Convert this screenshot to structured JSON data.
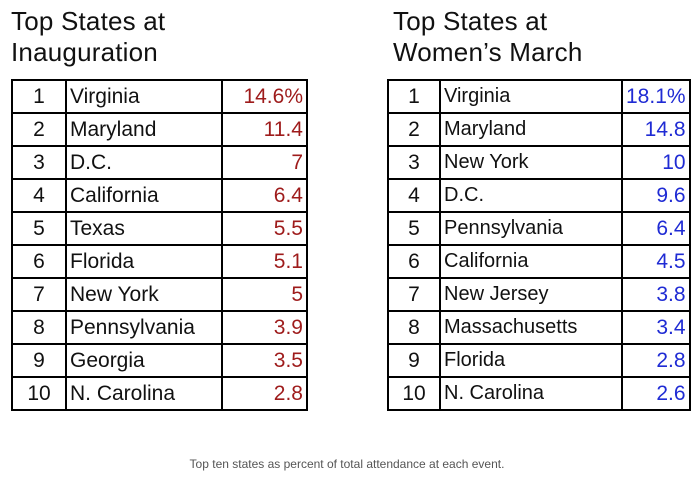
{
  "chart_data": [
    {
      "type": "table",
      "title": "Top States  at\nInauguration",
      "colors": {
        "value_text": "#9e1b1b"
      },
      "rows": [
        {
          "rank": "1",
          "state": "Virginia",
          "value": "14.6%"
        },
        {
          "rank": "2",
          "state": "Maryland",
          "value": "11.4"
        },
        {
          "rank": "3",
          "state": "D.C.",
          "value": "7"
        },
        {
          "rank": "4",
          "state": "California",
          "value": "6.4"
        },
        {
          "rank": "5",
          "state": "Texas",
          "value": "5.5"
        },
        {
          "rank": "6",
          "state": "Florida",
          "value": "5.1"
        },
        {
          "rank": "7",
          "state": "New York",
          "value": "5"
        },
        {
          "rank": "8",
          "state": "Pennsylvania",
          "value": "3.9"
        },
        {
          "rank": "9",
          "state": "Georgia",
          "value": "3.5"
        },
        {
          "rank": "10",
          "state": "N. Carolina",
          "value": "2.8"
        }
      ]
    },
    {
      "type": "table",
      "title": "Top States at\nWomen’s March",
      "colors": {
        "value_text": "#1f2bd4"
      },
      "rows": [
        {
          "rank": "1",
          "state": "Virginia",
          "value": "18.1%"
        },
        {
          "rank": "2",
          "state": "Maryland",
          "value": "14.8"
        },
        {
          "rank": "3",
          "state": "New York",
          "value": "10"
        },
        {
          "rank": "4",
          "state": "D.C.",
          "value": "9.6"
        },
        {
          "rank": "5",
          "state": "Pennsylvania",
          "value": "6.4"
        },
        {
          "rank": "6",
          "state": "California",
          "value": "4.5"
        },
        {
          "rank": "7",
          "state": "New Jersey",
          "value": "3.8"
        },
        {
          "rank": "8",
          "state": "Massachusetts",
          "value": "3.4"
        },
        {
          "rank": "9",
          "state": "Florida",
          "value": "2.8"
        },
        {
          "rank": "10",
          "state": "N. Carolina",
          "value": "2.6"
        }
      ]
    }
  ],
  "caption": "Top ten states as percent of total attendance at each event."
}
